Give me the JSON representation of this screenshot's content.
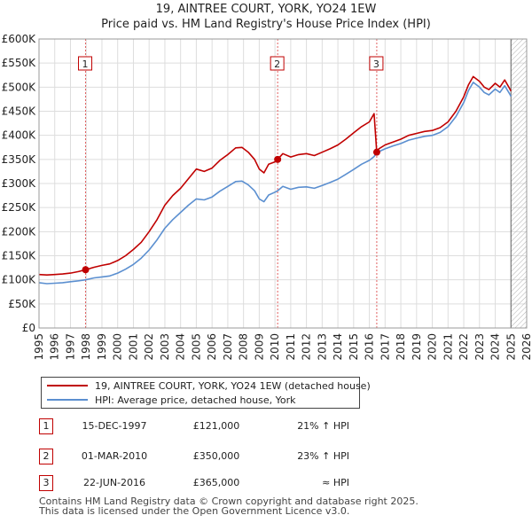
{
  "header": {
    "title_line1": "19, AINTREE COURT, YORK, YO24 1EW",
    "title_line2": "Price paid vs. HM Land Registry's House Price Index (HPI)"
  },
  "colors": {
    "property": "#c00000",
    "hpi": "#5b8fd0",
    "marker_line": "#e06060",
    "grid": "#dddddd",
    "future_hatch": "#aaaaaa"
  },
  "chart_data": {
    "type": "line",
    "title": "19, AINTREE COURT, YORK, YO24 1EW — Price paid vs. HM Land Registry's House Price Index (HPI)",
    "xlabel": "",
    "ylabel": "",
    "xlim": [
      1995,
      2026
    ],
    "ylim": [
      0,
      600000
    ],
    "x_ticks": [
      1995,
      1996,
      1997,
      1998,
      1999,
      2000,
      2001,
      2002,
      2003,
      2004,
      2005,
      2006,
      2007,
      2008,
      2009,
      2010,
      2011,
      2012,
      2013,
      2014,
      2015,
      2016,
      2017,
      2018,
      2019,
      2020,
      2021,
      2022,
      2023,
      2024,
      2025,
      2026
    ],
    "y_ticks": [
      {
        "value": 0,
        "label": "£0"
      },
      {
        "value": 50000,
        "label": "£50K"
      },
      {
        "value": 100000,
        "label": "£100K"
      },
      {
        "value": 150000,
        "label": "£150K"
      },
      {
        "value": 200000,
        "label": "£200K"
      },
      {
        "value": 250000,
        "label": "£250K"
      },
      {
        "value": 300000,
        "label": "£300K"
      },
      {
        "value": 350000,
        "label": "£350K"
      },
      {
        "value": 400000,
        "label": "£400K"
      },
      {
        "value": 450000,
        "label": "£450K"
      },
      {
        "value": 500000,
        "label": "£500K"
      },
      {
        "value": 550000,
        "label": "£550K"
      },
      {
        "value": 600000,
        "label": "£600K"
      }
    ],
    "grid": true,
    "forecast_start": 2025.0,
    "series": [
      {
        "name": "19, AINTREE COURT, YORK, YO24 1EW (detached house)",
        "color": "#c00000",
        "x": [
          1995.0,
          1995.5,
          1996.0,
          1996.5,
          1997.0,
          1997.5,
          1997.96,
          1998.5,
          1999.0,
          1999.5,
          2000.0,
          2000.5,
          2001.0,
          2001.5,
          2002.0,
          2002.5,
          2003.0,
          2003.5,
          2004.0,
          2004.5,
          2005.0,
          2005.5,
          2006.0,
          2006.5,
          2007.0,
          2007.5,
          2007.9,
          2008.3,
          2008.7,
          2009.0,
          2009.3,
          2009.6,
          2010.0,
          2010.17,
          2010.5,
          2011.0,
          2011.5,
          2012.0,
          2012.5,
          2013.0,
          2013.5,
          2014.0,
          2014.5,
          2015.0,
          2015.5,
          2016.0,
          2016.3,
          2016.47,
          2016.6,
          2017.0,
          2017.5,
          2018.0,
          2018.5,
          2019.0,
          2019.5,
          2020.0,
          2020.5,
          2021.0,
          2021.5,
          2022.0,
          2022.3,
          2022.6,
          2023.0,
          2023.3,
          2023.6,
          2024.0,
          2024.3,
          2024.6,
          2024.9,
          2025.0
        ],
        "y": [
          111000,
          110000,
          111000,
          112000,
          114000,
          117000,
          121000,
          126000,
          130000,
          133000,
          140000,
          150000,
          163000,
          178000,
          200000,
          225000,
          255000,
          275000,
          290000,
          310000,
          330000,
          325000,
          332000,
          348000,
          360000,
          374000,
          375000,
          365000,
          350000,
          330000,
          322000,
          340000,
          345000,
          350000,
          362000,
          355000,
          360000,
          362000,
          358000,
          365000,
          372000,
          380000,
          392000,
          405000,
          418000,
          428000,
          445000,
          365000,
          372000,
          380000,
          386000,
          392000,
          400000,
          404000,
          408000,
          410000,
          416000,
          428000,
          450000,
          480000,
          505000,
          522000,
          512000,
          500000,
          495000,
          508000,
          500000,
          515000,
          498000,
          492000
        ]
      },
      {
        "name": "HPI: Average price, detached house, York",
        "color": "#5b8fd0",
        "x": [
          1995.0,
          1995.5,
          1996.0,
          1996.5,
          1997.0,
          1997.5,
          1997.96,
          1998.5,
          1999.0,
          1999.5,
          2000.0,
          2000.5,
          2001.0,
          2001.5,
          2002.0,
          2002.5,
          2003.0,
          2003.5,
          2004.0,
          2004.5,
          2005.0,
          2005.5,
          2006.0,
          2006.5,
          2007.0,
          2007.5,
          2007.9,
          2008.3,
          2008.7,
          2009.0,
          2009.3,
          2009.6,
          2010.0,
          2010.17,
          2010.5,
          2011.0,
          2011.5,
          2012.0,
          2012.5,
          2013.0,
          2013.5,
          2014.0,
          2014.5,
          2015.0,
          2015.5,
          2016.0,
          2016.3,
          2016.47,
          2016.6,
          2017.0,
          2017.5,
          2018.0,
          2018.5,
          2019.0,
          2019.5,
          2020.0,
          2020.5,
          2021.0,
          2021.5,
          2022.0,
          2022.3,
          2022.6,
          2023.0,
          2023.3,
          2023.6,
          2024.0,
          2024.3,
          2024.6,
          2024.9,
          2025.0
        ],
        "y": [
          94000,
          92000,
          93000,
          94000,
          96000,
          98000,
          100000,
          104000,
          106000,
          108000,
          114000,
          122000,
          132000,
          145000,
          162000,
          183000,
          207000,
          225000,
          240000,
          255000,
          268000,
          266000,
          272000,
          284000,
          294000,
          304000,
          305000,
          297000,
          285000,
          268000,
          262000,
          276000,
          282000,
          285000,
          294000,
          288000,
          292000,
          293000,
          290000,
          296000,
          302000,
          309000,
          319000,
          329000,
          340000,
          348000,
          356000,
          364000,
          366000,
          372000,
          378000,
          383000,
          390000,
          394000,
          398000,
          400000,
          406000,
          418000,
          439000,
          468000,
          493000,
          510000,
          500000,
          489000,
          484000,
          496000,
          489000,
          503000,
          487000,
          481000
        ]
      }
    ],
    "markers": [
      {
        "id": "1",
        "x": 1997.96,
        "y": 121000
      },
      {
        "id": "2",
        "x": 2010.17,
        "y": 350000
      },
      {
        "id": "3",
        "x": 2016.47,
        "y": 365000
      }
    ]
  },
  "legend": {
    "property_label": "19, AINTREE COURT, YORK, YO24 1EW (detached house)",
    "hpi_label": "HPI: Average price, detached house, York"
  },
  "sales": [
    {
      "num": "1",
      "date": "15-DEC-1997",
      "price": "£121,000",
      "hpi": "21% ↑ HPI"
    },
    {
      "num": "2",
      "date": "01-MAR-2010",
      "price": "£350,000",
      "hpi": "23% ↑ HPI"
    },
    {
      "num": "3",
      "date": "22-JUN-2016",
      "price": "£365,000",
      "hpi": "≈ HPI"
    }
  ],
  "footer": {
    "line1": "Contains HM Land Registry data © Crown copyright and database right 2025.",
    "line2": "This data is licensed under the Open Government Licence v3.0."
  }
}
